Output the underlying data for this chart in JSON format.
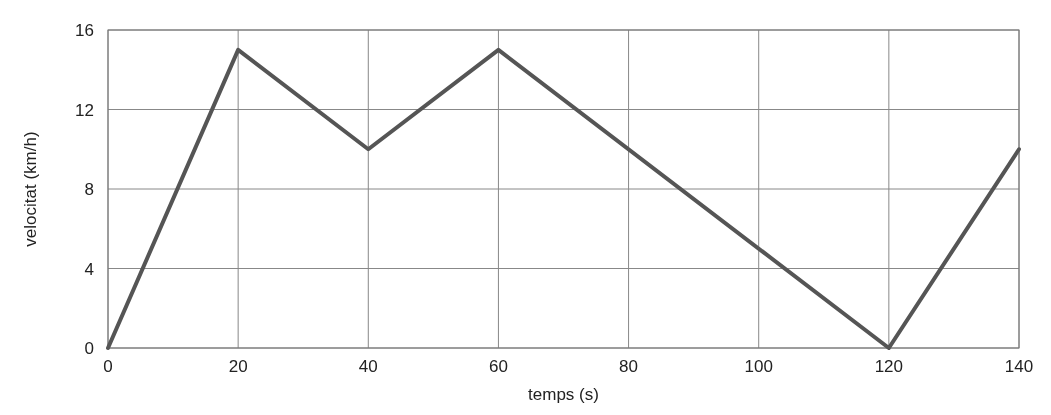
{
  "chart_data": {
    "type": "line",
    "xlabel": "temps (s)",
    "ylabel": "velocitat (km/h)",
    "x": [
      0,
      20,
      40,
      60,
      120,
      140
    ],
    "series": [
      {
        "color": "#555555",
        "values": [
          0,
          15,
          10,
          15,
          0,
          10
        ]
      }
    ],
    "xlim": [
      0,
      140
    ],
    "xticks": [
      0,
      20,
      40,
      60,
      80,
      100,
      120,
      140
    ],
    "ylim": [
      0,
      16
    ],
    "yticks": [
      0,
      4,
      8,
      12,
      16
    ],
    "grid": true,
    "marker": "none",
    "line_style": "solid"
  }
}
